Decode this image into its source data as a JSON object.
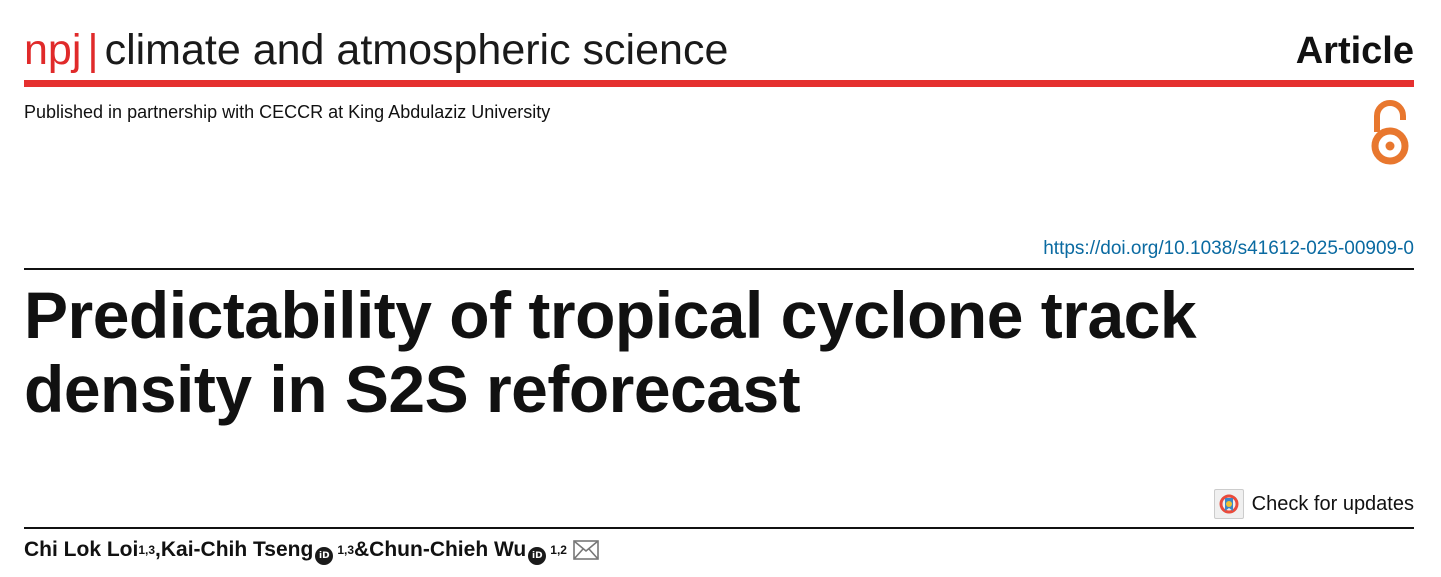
{
  "header": {
    "journal_brand": "npj",
    "journal_separator": "|",
    "journal_name": "climate and atmospheric science",
    "article_type": "Article",
    "partner_line": "Published in partnership with CECCR at King Abdulaziz University",
    "open_access_icon": "open-access-lock-icon"
  },
  "doi": "https://doi.org/10.1038/s41612-025-00909-0",
  "title": {
    "line1": "Predictability of tropical cyclone track",
    "line2": "density in S2S reforecast"
  },
  "updates_label": "Check for updates",
  "authors": [
    {
      "name": "Chi Lok Loi",
      "affil": "1,3",
      "separator": ", "
    },
    {
      "name": "Kai-Chih Tseng",
      "affil": "1,3",
      "separator": " & "
    },
    {
      "name": "Chun-Chieh Wu",
      "affil": "1,2",
      "separator": ""
    }
  ],
  "orcid_label": "iD",
  "colors": {
    "brand_red": "#e5302f",
    "open_access_orange": "#e8772e",
    "link_blue": "#0a6aa1"
  }
}
